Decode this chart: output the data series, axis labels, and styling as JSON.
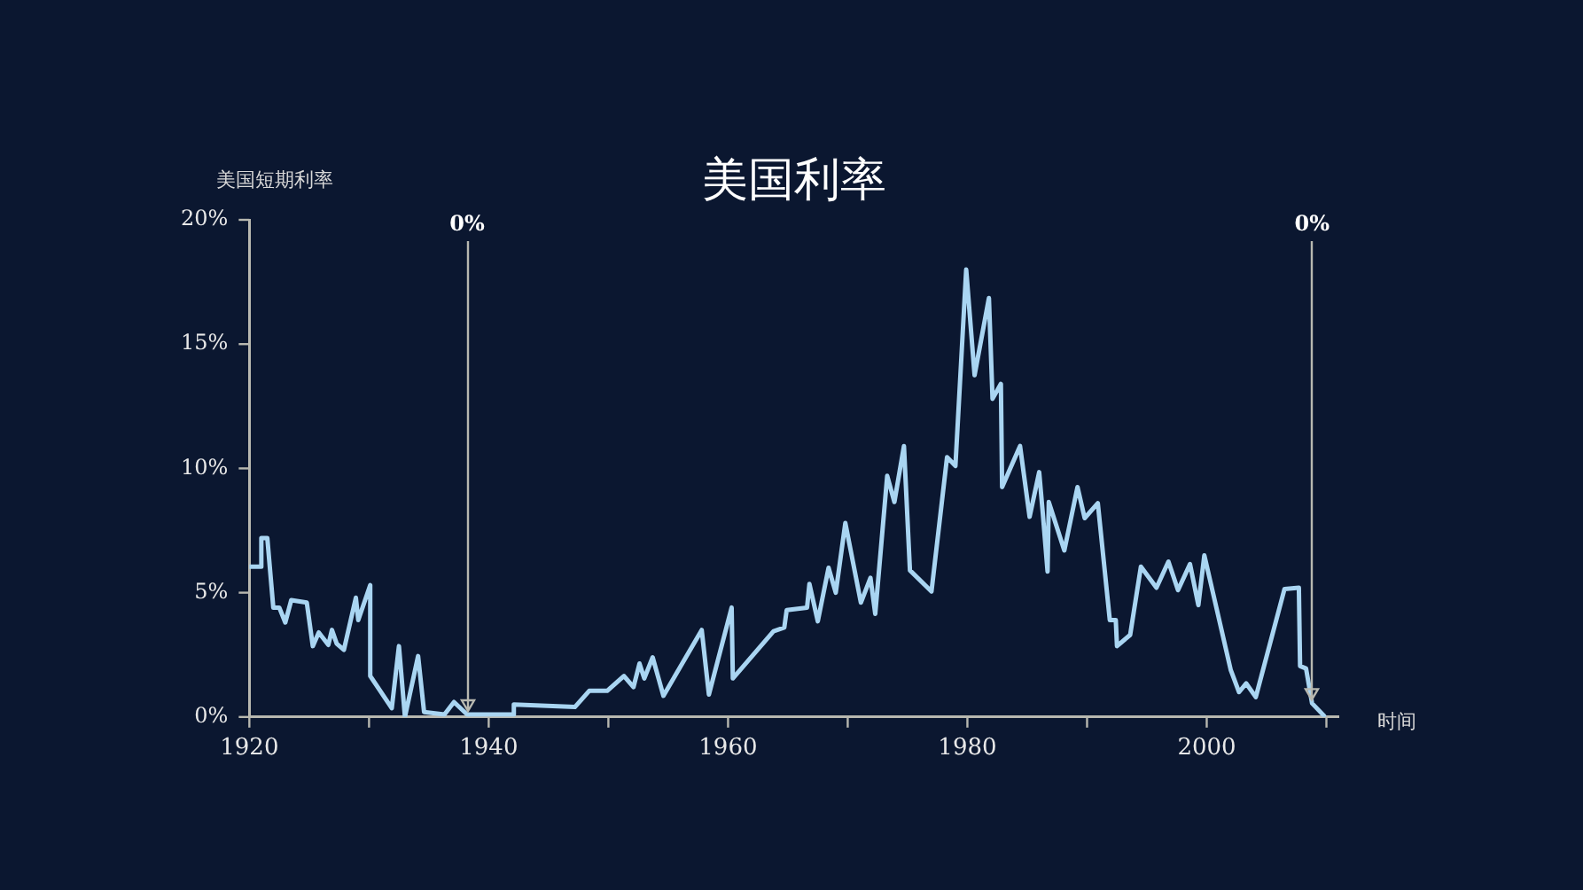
{
  "chart_data": {
    "type": "line",
    "title": "美国利率",
    "ylabel": "美国短期利率",
    "xlabel": "时间",
    "x": [
      1920,
      1921,
      1921,
      1921.5,
      1922,
      1922.5,
      1923,
      1923.5,
      1924.8,
      1925.3,
      1925.8,
      1926.6,
      1926.9,
      1927.3,
      1927.9,
      1928.9,
      1929.1,
      1930.1,
      1930.1,
      1931.9,
      1932.5,
      1933,
      1934.1,
      1934.6,
      1936.3,
      1937.1,
      1938.2,
      1942,
      1942.1,
      1947.2,
      1948.4,
      1949.9,
      1951.3,
      1952.1,
      1952.6,
      1953,
      1953.7,
      1954.6,
      1957.8,
      1958.4,
      1960.3,
      1960.4,
      1963.8,
      1964.7,
      1964.9,
      1966.6,
      1966.8,
      1967.5,
      1968.4,
      1969,
      1969.8,
      1971.1,
      1971.9,
      1972.3,
      1973.3,
      1973.9,
      1974.7,
      1975.2,
      1977,
      1978.3,
      1979,
      1979.9,
      1980.6,
      1981.8,
      1982.1,
      1982.8,
      1982.9,
      1984.4,
      1985.2,
      1986,
      1986.3,
      1986.7,
      1986.8,
      1988.1,
      1989.2,
      1989.8,
      1990.9,
      1991.9,
      1992.4,
      1992.5,
      1993.6,
      1994.5,
      1995.8,
      1996.8,
      1997.6,
      1998.6,
      1999.3,
      1999.8,
      2002,
      2002.7,
      2003.3,
      2004.1,
      2006.5,
      2007.7,
      2007.8,
      2008.3,
      2008.8,
      2009.8
    ],
    "series": [
      {
        "color": "#a9d5f2",
        "values": [
          6.05,
          6.05,
          7.2,
          7.2,
          4.4,
          4.4,
          3.8,
          4.7,
          4.6,
          2.85,
          3.4,
          2.9,
          3.5,
          2.95,
          2.7,
          4.8,
          3.9,
          5.3,
          1.65,
          0.35,
          2.85,
          0,
          2.45,
          0.2,
          0.1,
          0.6,
          0.1,
          0.1,
          0.5,
          0.4,
          1.05,
          1.05,
          1.65,
          1.2,
          2.15,
          1.55,
          2.4,
          0.85,
          3.5,
          0.9,
          4.4,
          1.55,
          3.45,
          3.6,
          4.3,
          4.4,
          5.35,
          3.85,
          6.0,
          5.0,
          7.8,
          4.6,
          5.6,
          4.15,
          9.7,
          8.65,
          10.9,
          5.9,
          5.05,
          10.45,
          10.1,
          18.0,
          13.75,
          16.85,
          12.8,
          13.4,
          9.25,
          10.9,
          8.05,
          9.85,
          8.2,
          5.85,
          8.65,
          6.7,
          9.25,
          8.0,
          8.6,
          3.9,
          3.9,
          2.85,
          3.3,
          6.05,
          5.2,
          6.25,
          5.1,
          6.15,
          4.5,
          6.5,
          1.9,
          1.0,
          1.35,
          0.8,
          5.15,
          5.2,
          2.05,
          1.95,
          0.55,
          0.05
        ]
      }
    ],
    "xlim": [
      1920,
      2011
    ],
    "xticks": [
      1920,
      {
        "value": 1930,
        "label": null
      },
      1940,
      {
        "value": 1950,
        "label": null
      },
      1960,
      {
        "value": 1970,
        "label": null
      },
      1980,
      {
        "value": 1990,
        "label": null
      },
      2000,
      {
        "value": 2010,
        "label": null
      }
    ],
    "ylim": [
      0,
      20
    ],
    "yticks": [
      {
        "value": 0,
        "label": "0%"
      },
      {
        "value": 5,
        "label": "5%"
      },
      {
        "value": 10,
        "label": "10%"
      },
      {
        "value": 15,
        "label": "15%"
      },
      {
        "value": 20,
        "label": "20%"
      }
    ],
    "annotations": [
      {
        "text": "0%",
        "x": 1938.2,
        "y": 0.1
      },
      {
        "text": "0%",
        "x": 2008.8,
        "y": 0.55
      }
    ],
    "grid": false,
    "legend": false,
    "marker": "none",
    "line_style": "solid"
  }
}
